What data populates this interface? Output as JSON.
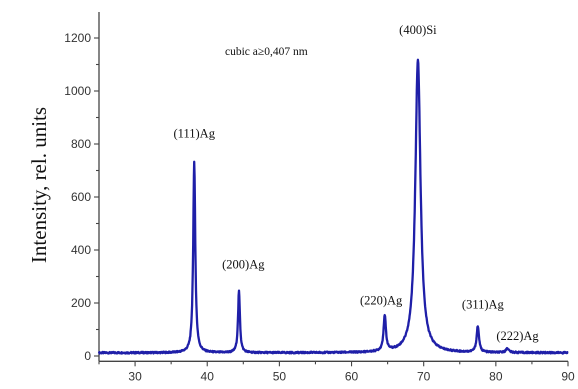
{
  "chart_data": {
    "type": "line",
    "title": "",
    "xlabel": "",
    "ylabel": "Intensity, rel. units",
    "xlim": [
      25,
      90
    ],
    "ylim": [
      -20,
      1300
    ],
    "xticks": [
      30,
      40,
      50,
      60,
      70,
      80,
      90
    ],
    "yticks": [
      0,
      200,
      400,
      600,
      800,
      1000,
      1200
    ],
    "grid": false,
    "legend": "none",
    "line_color": "#1f1fa8",
    "annotation": "cubic a≥0,407 nm",
    "baseline": 12,
    "peaks": [
      {
        "label": "(111)Ag",
        "x": 38.2,
        "y": 730,
        "width": 0.22,
        "label_x": 38.2,
        "label_y": 825
      },
      {
        "label": "(200)Ag",
        "x": 44.4,
        "y": 245,
        "width": 0.2,
        "label_x": 45.0,
        "label_y": 330
      },
      {
        "label": "(220)Ag",
        "x": 64.6,
        "y": 145,
        "width": 0.25,
        "label_x": 64.1,
        "label_y": 195
      },
      {
        "label": "(400)Si",
        "x": 69.2,
        "y": 1120,
        "width": 0.55,
        "label_x": 69.2,
        "label_y": 1215
      },
      {
        "label": "(311)Ag",
        "x": 77.5,
        "y": 110,
        "width": 0.25,
        "label_x": 78.2,
        "label_y": 180
      },
      {
        "label": "(222)Ag",
        "x": 81.6,
        "y": 28,
        "width": 0.3,
        "label_x": 83.0,
        "label_y": 60
      }
    ]
  }
}
